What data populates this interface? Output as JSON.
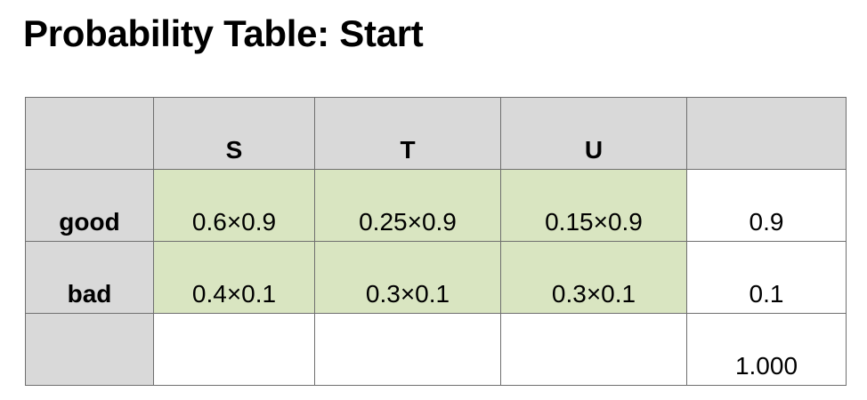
{
  "title": "Probability Table: Start",
  "table": {
    "columns": [
      "",
      "S",
      "T",
      "U",
      ""
    ],
    "rows": [
      {
        "label": "good",
        "cells": [
          "0.6×0.9",
          "0.25×0.9",
          "0.15×0.9"
        ],
        "total": "0.9"
      },
      {
        "label": "bad",
        "cells": [
          "0.4×0.1",
          "0.3×0.1",
          "0.3×0.1"
        ],
        "total": "0.1"
      },
      {
        "label": "",
        "cells": [
          "",
          "",
          ""
        ],
        "total": "1.000"
      }
    ]
  },
  "colors": {
    "header_gray": "#d9d9d9",
    "cell_green": "#d9e5c1",
    "border": "#6f6f6f"
  }
}
